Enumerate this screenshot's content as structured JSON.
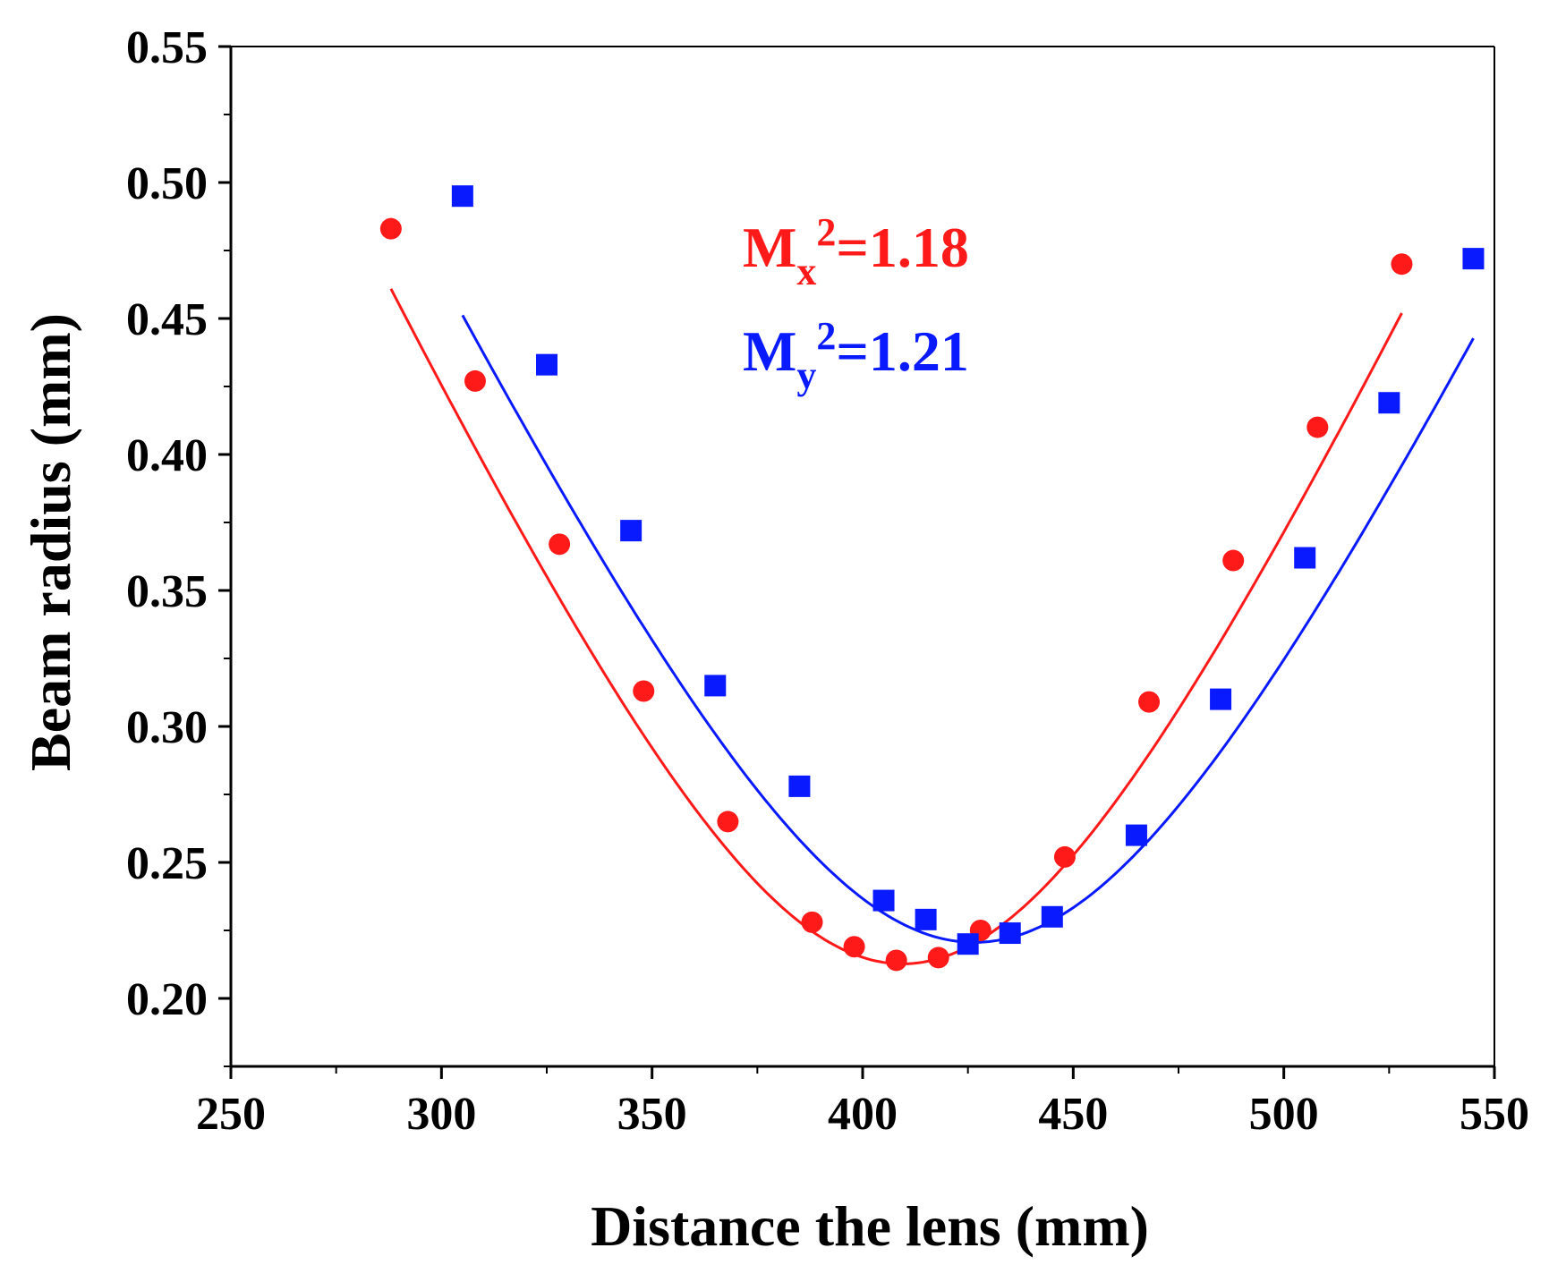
{
  "chart_data": {
    "type": "scatter",
    "title": "",
    "xlabel": "Distance the lens (mm)",
    "ylabel": "Beam radius (mm)",
    "xlim": [
      250,
      550
    ],
    "ylim": [
      0.175,
      0.55
    ],
    "xticks": [
      250,
      300,
      350,
      400,
      450,
      500,
      550
    ],
    "xtick_labels": [
      "250",
      "300",
      "350",
      "400",
      "450",
      "500",
      "550"
    ],
    "yticks": [
      0.2,
      0.25,
      0.3,
      0.35,
      0.4,
      0.45,
      0.5,
      0.55
    ],
    "ytick_labels": [
      "0.20",
      "0.25",
      "0.30",
      "0.35",
      "0.40",
      "0.45",
      "0.50",
      "0.55"
    ],
    "grid": false,
    "legend": "none",
    "series": [
      {
        "marker": "circle",
        "color": "#ff1a1a",
        "x": [
          288,
          308,
          328,
          348,
          368,
          388,
          398,
          408,
          418,
          428,
          448,
          468,
          488,
          508,
          528
        ],
        "y": [
          0.483,
          0.427,
          0.367,
          0.313,
          0.265,
          0.228,
          0.219,
          0.214,
          0.215,
          0.225,
          0.252,
          0.309,
          0.361,
          0.41,
          0.47
        ],
        "fit": {
          "w0": 0.2127,
          "z0": 409.5,
          "zr": 63.2,
          "zmin": 288,
          "zmax": 528
        }
      },
      {
        "marker": "square",
        "color": "#0a1aff",
        "x": [
          305,
          325,
          345,
          365,
          385,
          405,
          415,
          425,
          435,
          445,
          465,
          485,
          505,
          525,
          545
        ],
        "y": [
          0.495,
          0.433,
          0.372,
          0.315,
          0.278,
          0.236,
          0.229,
          0.22,
          0.224,
          0.23,
          0.26,
          0.31,
          0.362,
          0.419,
          0.472
        ],
        "fit": {
          "w0": 0.2206,
          "z0": 426.5,
          "zr": 68.1,
          "zmin": 305,
          "zmax": 545
        }
      }
    ],
    "annotations": [
      {
        "main": "M",
        "sub": "x",
        "sup": "2",
        "value": "=1.18",
        "color": "#ff1a1a"
      },
      {
        "main": "M",
        "sub": "y",
        "sup": "2",
        "value": "=1.21",
        "color": "#0a1aff"
      }
    ]
  }
}
